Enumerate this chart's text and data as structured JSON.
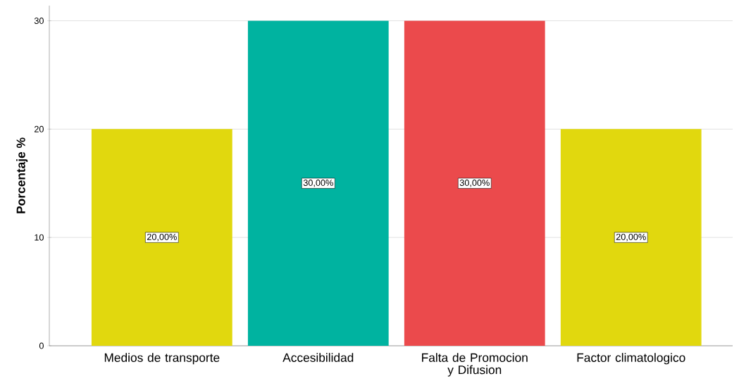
{
  "chart_data": {
    "type": "bar",
    "ylabel": "Porcentaje %",
    "categories": [
      "Medios de transporte",
      "Accesibilidad",
      "Falta de Promocion y Difusion",
      "Factor climatologico"
    ],
    "values": [
      20,
      30,
      30,
      20
    ],
    "colors": [
      "#e1d80e",
      "#00b3a0",
      "#eb4a4c",
      "#e1d80e"
    ],
    "value_labels": [
      "20,00%",
      "30,00%",
      "30,00%",
      "20,00%"
    ],
    "ylim": [
      0,
      31.4
    ],
    "yticks": [
      0,
      10,
      20,
      30
    ],
    "grid": "y"
  }
}
